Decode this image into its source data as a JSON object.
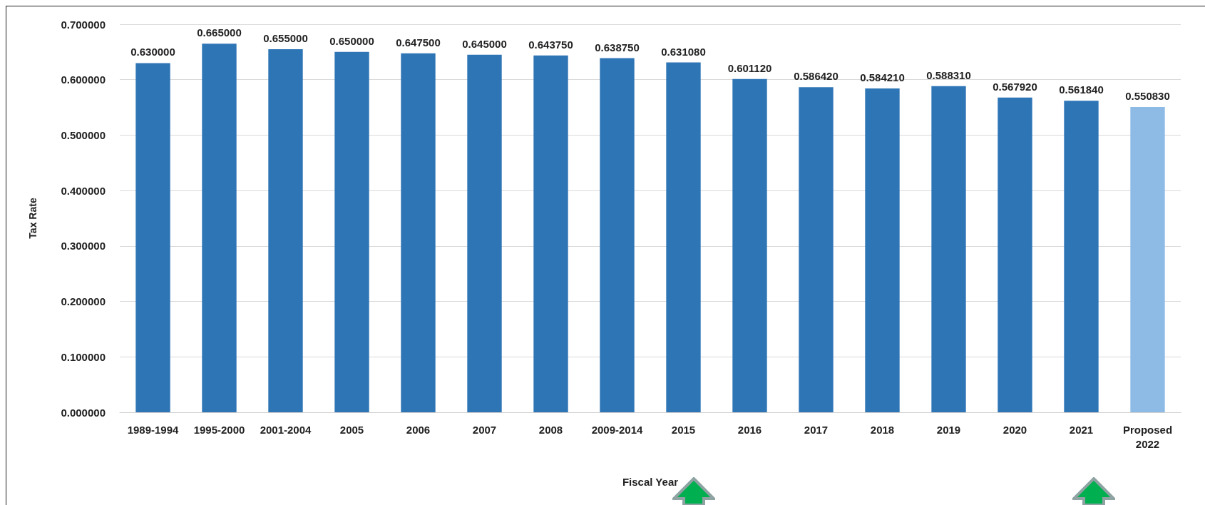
{
  "chart_data": {
    "type": "bar",
    "xlabel": "Fiscal Year",
    "ylabel": "Tax Rate",
    "categories": [
      "1989-1994",
      "1995-2000",
      "2001-2004",
      "2005",
      "2006",
      "2007",
      "2008",
      "2009-2014",
      "2015",
      "2016",
      "2017",
      "2018",
      "2019",
      "2020",
      "2021",
      "Proposed\n2022"
    ],
    "values": [
      0.63,
      0.665,
      0.655,
      0.65,
      0.6475,
      0.645,
      0.64375,
      0.63875,
      0.63108,
      0.60112,
      0.58642,
      0.58421,
      0.58831,
      0.56792,
      0.56184,
      0.55083
    ],
    "value_labels": [
      "0.630000",
      "0.665000",
      "0.655000",
      "0.650000",
      "0.647500",
      "0.645000",
      "0.643750",
      "0.638750",
      "0.631080",
      "0.601120",
      "0.586420",
      "0.584210",
      "0.588310",
      "0.567920",
      "0.561840",
      "0.550830"
    ],
    "colors": [
      "#2e75b6",
      "#2e75b6",
      "#2e75b6",
      "#2e75b6",
      "#2e75b6",
      "#2e75b6",
      "#2e75b6",
      "#2e75b6",
      "#2e75b6",
      "#2e75b6",
      "#2e75b6",
      "#2e75b6",
      "#2e75b6",
      "#2e75b6",
      "#2e75b6",
      "#8dbbe6"
    ],
    "ylim": [
      0,
      0.7
    ],
    "yticks": [
      {
        "value": 0,
        "label": "0.000000"
      },
      {
        "value": 0.1,
        "label": "0.100000"
      },
      {
        "value": 0.2,
        "label": "0.200000"
      },
      {
        "value": 0.3,
        "label": "0.300000"
      },
      {
        "value": 0.4,
        "label": "0.400000"
      },
      {
        "value": 0.5,
        "label": "0.500000"
      },
      {
        "value": 0.6,
        "label": "0.600000"
      },
      {
        "value": 0.7,
        "label": "0.700000"
      }
    ],
    "grid": "y"
  }
}
